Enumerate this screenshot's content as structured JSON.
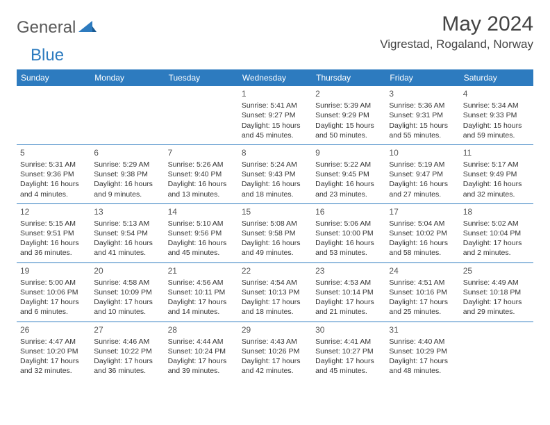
{
  "brand": {
    "part1": "General",
    "part2": "Blue"
  },
  "title": "May 2024",
  "location": "Vigrestad, Rogaland, Norway",
  "dayHeaders": [
    "Sunday",
    "Monday",
    "Tuesday",
    "Wednesday",
    "Thursday",
    "Friday",
    "Saturday"
  ],
  "colors": {
    "header_bg": "#2d7bbf",
    "header_fg": "#ffffff",
    "cell_border": "#2d7bbf",
    "text": "#333333",
    "title": "#444444"
  },
  "weeks": [
    [
      null,
      null,
      null,
      {
        "n": "1",
        "sr": "Sunrise: 5:41 AM",
        "ss": "Sunset: 9:27 PM",
        "dl": "Daylight: 15 hours and 45 minutes."
      },
      {
        "n": "2",
        "sr": "Sunrise: 5:39 AM",
        "ss": "Sunset: 9:29 PM",
        "dl": "Daylight: 15 hours and 50 minutes."
      },
      {
        "n": "3",
        "sr": "Sunrise: 5:36 AM",
        "ss": "Sunset: 9:31 PM",
        "dl": "Daylight: 15 hours and 55 minutes."
      },
      {
        "n": "4",
        "sr": "Sunrise: 5:34 AM",
        "ss": "Sunset: 9:33 PM",
        "dl": "Daylight: 15 hours and 59 minutes."
      }
    ],
    [
      {
        "n": "5",
        "sr": "Sunrise: 5:31 AM",
        "ss": "Sunset: 9:36 PM",
        "dl": "Daylight: 16 hours and 4 minutes."
      },
      {
        "n": "6",
        "sr": "Sunrise: 5:29 AM",
        "ss": "Sunset: 9:38 PM",
        "dl": "Daylight: 16 hours and 9 minutes."
      },
      {
        "n": "7",
        "sr": "Sunrise: 5:26 AM",
        "ss": "Sunset: 9:40 PM",
        "dl": "Daylight: 16 hours and 13 minutes."
      },
      {
        "n": "8",
        "sr": "Sunrise: 5:24 AM",
        "ss": "Sunset: 9:43 PM",
        "dl": "Daylight: 16 hours and 18 minutes."
      },
      {
        "n": "9",
        "sr": "Sunrise: 5:22 AM",
        "ss": "Sunset: 9:45 PM",
        "dl": "Daylight: 16 hours and 23 minutes."
      },
      {
        "n": "10",
        "sr": "Sunrise: 5:19 AM",
        "ss": "Sunset: 9:47 PM",
        "dl": "Daylight: 16 hours and 27 minutes."
      },
      {
        "n": "11",
        "sr": "Sunrise: 5:17 AM",
        "ss": "Sunset: 9:49 PM",
        "dl": "Daylight: 16 hours and 32 minutes."
      }
    ],
    [
      {
        "n": "12",
        "sr": "Sunrise: 5:15 AM",
        "ss": "Sunset: 9:51 PM",
        "dl": "Daylight: 16 hours and 36 minutes."
      },
      {
        "n": "13",
        "sr": "Sunrise: 5:13 AM",
        "ss": "Sunset: 9:54 PM",
        "dl": "Daylight: 16 hours and 41 minutes."
      },
      {
        "n": "14",
        "sr": "Sunrise: 5:10 AM",
        "ss": "Sunset: 9:56 PM",
        "dl": "Daylight: 16 hours and 45 minutes."
      },
      {
        "n": "15",
        "sr": "Sunrise: 5:08 AM",
        "ss": "Sunset: 9:58 PM",
        "dl": "Daylight: 16 hours and 49 minutes."
      },
      {
        "n": "16",
        "sr": "Sunrise: 5:06 AM",
        "ss": "Sunset: 10:00 PM",
        "dl": "Daylight: 16 hours and 53 minutes."
      },
      {
        "n": "17",
        "sr": "Sunrise: 5:04 AM",
        "ss": "Sunset: 10:02 PM",
        "dl": "Daylight: 16 hours and 58 minutes."
      },
      {
        "n": "18",
        "sr": "Sunrise: 5:02 AM",
        "ss": "Sunset: 10:04 PM",
        "dl": "Daylight: 17 hours and 2 minutes."
      }
    ],
    [
      {
        "n": "19",
        "sr": "Sunrise: 5:00 AM",
        "ss": "Sunset: 10:06 PM",
        "dl": "Daylight: 17 hours and 6 minutes."
      },
      {
        "n": "20",
        "sr": "Sunrise: 4:58 AM",
        "ss": "Sunset: 10:09 PM",
        "dl": "Daylight: 17 hours and 10 minutes."
      },
      {
        "n": "21",
        "sr": "Sunrise: 4:56 AM",
        "ss": "Sunset: 10:11 PM",
        "dl": "Daylight: 17 hours and 14 minutes."
      },
      {
        "n": "22",
        "sr": "Sunrise: 4:54 AM",
        "ss": "Sunset: 10:13 PM",
        "dl": "Daylight: 17 hours and 18 minutes."
      },
      {
        "n": "23",
        "sr": "Sunrise: 4:53 AM",
        "ss": "Sunset: 10:14 PM",
        "dl": "Daylight: 17 hours and 21 minutes."
      },
      {
        "n": "24",
        "sr": "Sunrise: 4:51 AM",
        "ss": "Sunset: 10:16 PM",
        "dl": "Daylight: 17 hours and 25 minutes."
      },
      {
        "n": "25",
        "sr": "Sunrise: 4:49 AM",
        "ss": "Sunset: 10:18 PM",
        "dl": "Daylight: 17 hours and 29 minutes."
      }
    ],
    [
      {
        "n": "26",
        "sr": "Sunrise: 4:47 AM",
        "ss": "Sunset: 10:20 PM",
        "dl": "Daylight: 17 hours and 32 minutes."
      },
      {
        "n": "27",
        "sr": "Sunrise: 4:46 AM",
        "ss": "Sunset: 10:22 PM",
        "dl": "Daylight: 17 hours and 36 minutes."
      },
      {
        "n": "28",
        "sr": "Sunrise: 4:44 AM",
        "ss": "Sunset: 10:24 PM",
        "dl": "Daylight: 17 hours and 39 minutes."
      },
      {
        "n": "29",
        "sr": "Sunrise: 4:43 AM",
        "ss": "Sunset: 10:26 PM",
        "dl": "Daylight: 17 hours and 42 minutes."
      },
      {
        "n": "30",
        "sr": "Sunrise: 4:41 AM",
        "ss": "Sunset: 10:27 PM",
        "dl": "Daylight: 17 hours and 45 minutes."
      },
      {
        "n": "31",
        "sr": "Sunrise: 4:40 AM",
        "ss": "Sunset: 10:29 PM",
        "dl": "Daylight: 17 hours and 48 minutes."
      },
      null
    ]
  ]
}
